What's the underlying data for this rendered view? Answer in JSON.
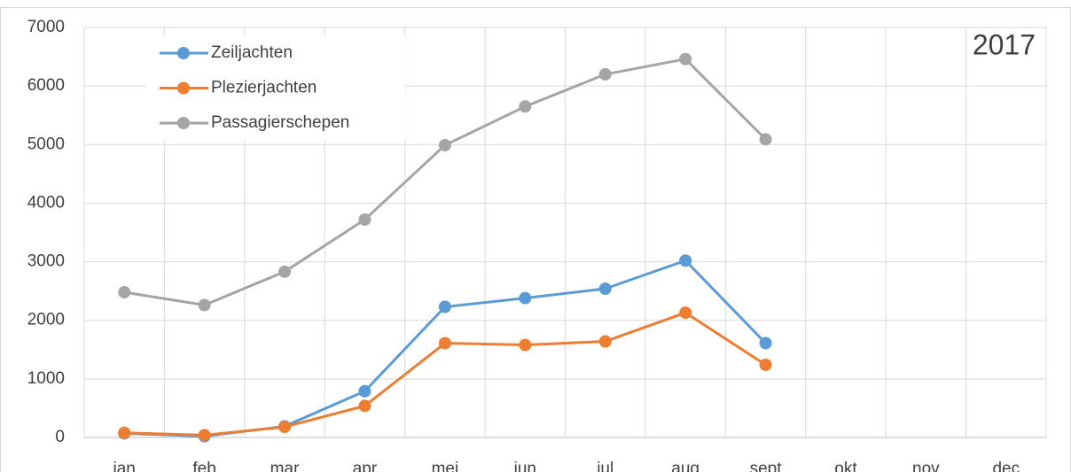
{
  "chart_data": {
    "type": "line",
    "annotation": "2017",
    "categories": [
      "jan",
      "feb",
      "mar",
      "apr",
      "mei",
      "jun",
      "jul",
      "aug",
      "sept",
      "okt",
      "nov",
      "dec"
    ],
    "series": [
      {
        "name": "Zeiljachten",
        "color": "#5b9bd5",
        "values": [
          70,
          20,
          190,
          790,
          2230,
          2380,
          2540,
          3020,
          1610,
          null,
          null,
          null
        ]
      },
      {
        "name": "Plezierjachten",
        "color": "#ed7d31",
        "values": [
          80,
          40,
          180,
          540,
          1610,
          1580,
          1640,
          2130,
          1240,
          null,
          null,
          null
        ]
      },
      {
        "name": "Passagierschepen",
        "color": "#a5a5a5",
        "values": [
          2480,
          2260,
          2830,
          3720,
          4990,
          5650,
          6200,
          6460,
          5090,
          null,
          null,
          null
        ]
      }
    ],
    "ylim": [
      0,
      7000
    ],
    "yticks": [
      0,
      1000,
      2000,
      3000,
      4000,
      5000,
      6000,
      7000
    ],
    "grid": true,
    "legend": "top-left"
  }
}
